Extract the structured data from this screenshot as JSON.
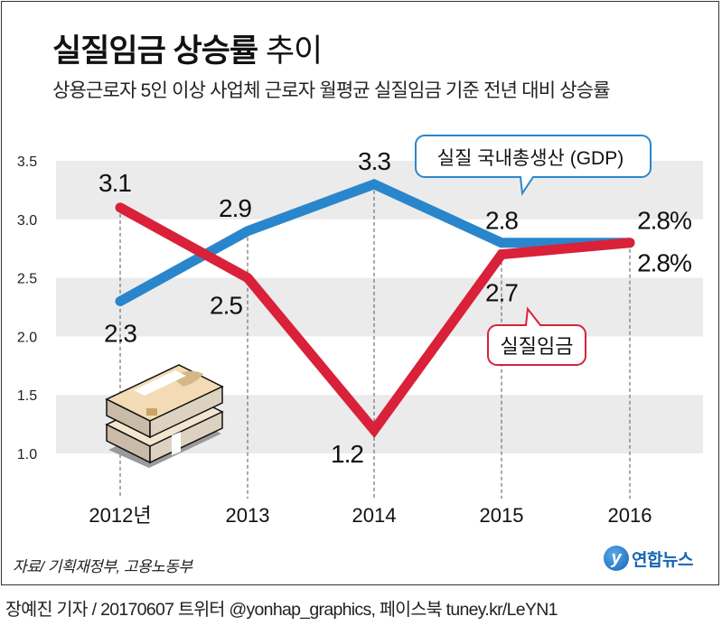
{
  "header": {
    "title_bold": "실질임금 상승률",
    "title_light": "추이",
    "subtitle": "상용근로자 5인 이상 사업체 근로자 월평균 실질임금 기준 전년 대비 상승률"
  },
  "chart_data": {
    "type": "line",
    "title": "실질임금 상승률 추이",
    "subtitle": "상용근로자 5인 이상 사업체 근로자 월평균 실질임금 기준 전년 대비 상승률",
    "xlabel": "",
    "ylabel": "",
    "categories": [
      "2012년",
      "2013",
      "2014",
      "2015",
      "2016"
    ],
    "ylim": [
      1.0,
      3.5
    ],
    "yticks": [
      "1.0",
      "1.5",
      "2.0",
      "2.5",
      "3.0",
      "3.5"
    ],
    "grid": "alternating horizontal bands",
    "unit": "%",
    "series": [
      {
        "name": "실질 국내총생산 (GDP)",
        "color": "#2a86cc",
        "values": [
          2.3,
          2.9,
          3.3,
          2.8,
          2.8
        ],
        "labels": [
          "2.3",
          "2.9",
          "3.3",
          "2.8",
          "2.8%"
        ]
      },
      {
        "name": "실질임금",
        "color": "#d9213a",
        "values": [
          3.1,
          2.5,
          1.2,
          2.7,
          2.8
        ],
        "labels": [
          "3.1",
          "2.5",
          "1.2",
          "2.7",
          "2.8%"
        ]
      }
    ],
    "legend": "callout labels on lines"
  },
  "footer": {
    "source": "자료/ 기획재정부, 고용노동부",
    "logo_text": "연합뉴스",
    "logo_mark": "y",
    "credit": "장예진 기자 / 20170607 트위터 @yonhap_graphics, 페이스북 tuney.kr/LeYN1"
  },
  "colors": {
    "gdp": "#2a86cc",
    "wage": "#d9213a",
    "band": "#ebebeb",
    "logo": "#1565b4"
  }
}
